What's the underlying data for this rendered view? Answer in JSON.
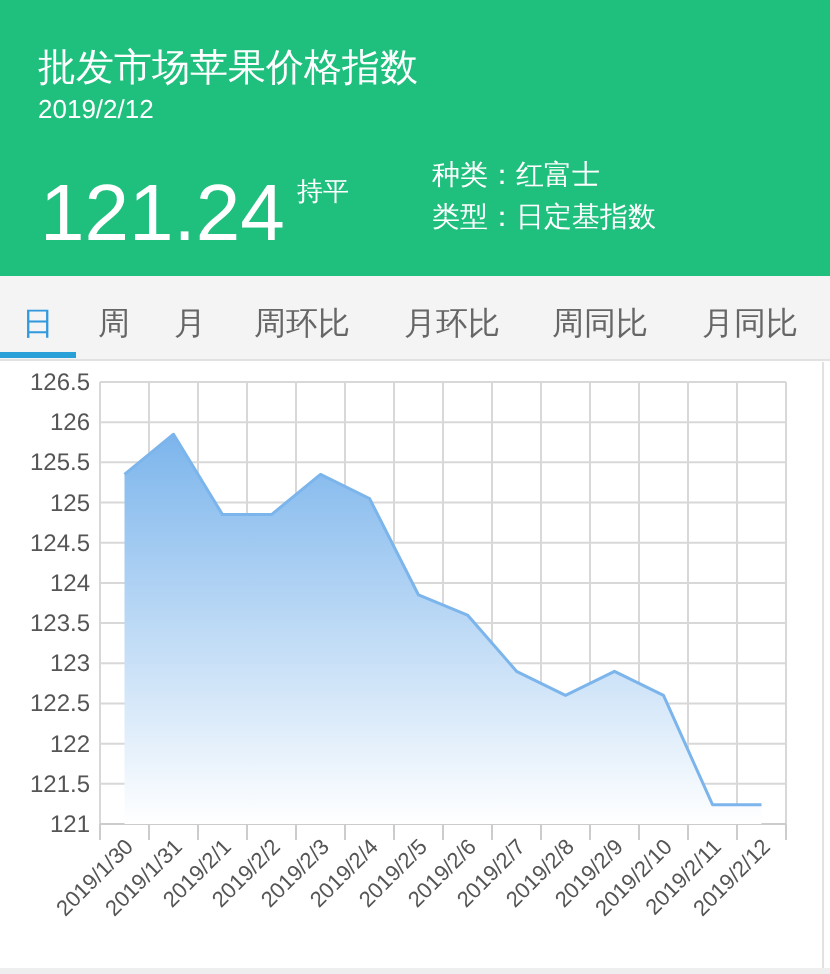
{
  "chart_data": {
    "type": "area",
    "title": "批发市场苹果价格指数",
    "subtitle": "2019/2/12",
    "categories": [
      "2019/1/30",
      "2019/1/31",
      "2019/2/1",
      "2019/2/2",
      "2019/2/3",
      "2019/2/4",
      "2019/2/5",
      "2019/2/6",
      "2019/2/7",
      "2019/2/8",
      "2019/2/9",
      "2019/2/10",
      "2019/2/11",
      "2019/2/12"
    ],
    "values": [
      125.35,
      125.85,
      124.85,
      124.85,
      125.35,
      125.05,
      123.85,
      123.6,
      122.9,
      122.6,
      122.9,
      122.6,
      121.24,
      121.24
    ],
    "color": "#7cb5ec",
    "ylim": [
      121,
      126.5
    ],
    "yticks": [
      121,
      121.5,
      122,
      122.5,
      123,
      123.5,
      124,
      124.5,
      125,
      125.5,
      126,
      126.5
    ],
    "grid": true,
    "annotations": [
      "121.24",
      "持平",
      "种类：红富士",
      "类型：日定基指数",
      "日",
      "周",
      "月",
      "周环比",
      "月环比",
      "周同比",
      "月同比"
    ]
  }
}
